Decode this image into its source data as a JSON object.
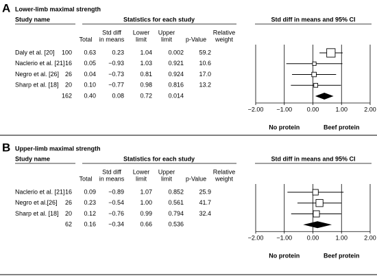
{
  "chart_data": [
    {
      "type": "forest",
      "panel_label": "A",
      "title": "Lower-limb maximal strength",
      "study_header": "Study name",
      "stats_header": "Statistics for each study",
      "plot_header": "Std diff in means and 95% CI",
      "categories": [
        "Daly et al. [20]",
        "Naclerio et al. [21]",
        "Negro et al. [26]",
        "Sharp et al. [18]",
        null
      ],
      "total": {
        "name": [
          "Total"
        ],
        "values": [
          100,
          16,
          26,
          20,
          162
        ]
      },
      "std_diff": {
        "name": [
          "Std diff",
          "in means"
        ],
        "values": [
          0.63,
          0.05,
          0.04,
          0.1,
          0.4
        ],
        "value_labels": [
          "0.63",
          "0.05",
          "0.04",
          "0.10",
          "0.40"
        ]
      },
      "lower": {
        "name": [
          "Lower",
          "limit"
        ],
        "values": [
          0.23,
          -0.93,
          -0.73,
          -0.77,
          0.08
        ],
        "value_labels": [
          "0.23",
          "−0.93",
          "−0.73",
          "−0.77",
          "0.08"
        ]
      },
      "upper": {
        "name": [
          "Upper",
          "limit"
        ],
        "values": [
          1.04,
          1.03,
          0.81,
          0.98,
          0.72
        ],
        "value_labels": [
          "1.04",
          "1.03",
          "0.81",
          "0.98",
          "0.72"
        ]
      },
      "p_value": {
        "name": [
          "p-Value"
        ],
        "values": [
          0.002,
          0.921,
          0.924,
          0.816,
          0.014
        ]
      },
      "weight": {
        "name": [
          "Relative",
          "weight"
        ],
        "values": [
          59.2,
          10.6,
          17.0,
          13.2,
          null
        ],
        "value_labels": [
          "59.2",
          "10.6",
          "17.0",
          "13.2",
          null
        ]
      },
      "xlim": [
        -2,
        2
      ],
      "xticks": [
        {
          "value": -2,
          "label": "−2.00"
        },
        {
          "value": -1,
          "label": "−1.00"
        },
        {
          "value": 0,
          "label": "0.00"
        },
        {
          "value": 1,
          "label": "1.00"
        },
        {
          "value": 2,
          "label": "2.00"
        }
      ],
      "left_label": "No protein",
      "right_label": "Beef protein",
      "grid": true,
      "color": "#000000"
    },
    {
      "type": "forest",
      "panel_label": "B",
      "title": "Upper-limb maximal strength",
      "study_header": "Study name",
      "stats_header": "Statistics for each study",
      "plot_header": "Std diff in means and 95% CI",
      "categories": [
        "Naclerio et al. [21]",
        "Negro et al.[26]",
        "Sharp et al. [18]",
        null
      ],
      "total": {
        "name": [
          "Total"
        ],
        "values": [
          16,
          26,
          20,
          62
        ]
      },
      "std_diff": {
        "name": [
          "Std diff",
          "in means"
        ],
        "values": [
          0.09,
          0.23,
          0.12,
          0.16
        ],
        "value_labels": [
          "0.09",
          "0.23",
          "0.12",
          "0.16"
        ]
      },
      "lower": {
        "name": [
          "Lower",
          "limit"
        ],
        "values": [
          -0.89,
          -0.54,
          -0.76,
          -0.34
        ],
        "value_labels": [
          "−0.89",
          "−0.54",
          "−0.76",
          "−0.34"
        ]
      },
      "upper": {
        "name": [
          "Upper",
          "limit"
        ],
        "values": [
          1.07,
          1.0,
          0.99,
          0.66
        ],
        "value_labels": [
          "1.07",
          "1.00",
          "0.99",
          "0.66"
        ]
      },
      "p_value": {
        "name": [
          "p-Value"
        ],
        "values": [
          0.852,
          0.561,
          0.794,
          0.536
        ]
      },
      "weight": {
        "name": [
          "Relative",
          "weight"
        ],
        "values": [
          25.9,
          41.7,
          32.4,
          null
        ],
        "value_labels": [
          "25.9",
          "41.7",
          "32.4",
          null
        ]
      },
      "xlim": [
        -2,
        2
      ],
      "xticks": [
        {
          "value": -2,
          "label": "−2.00"
        },
        {
          "value": -1,
          "label": "−1.00"
        },
        {
          "value": 0,
          "label": "0.00"
        },
        {
          "value": 1,
          "label": "1.00"
        },
        {
          "value": 2,
          "label": "2.00"
        }
      ],
      "left_label": "No protein",
      "right_label": "Beef protein",
      "grid": true,
      "color": "#000000"
    }
  ]
}
